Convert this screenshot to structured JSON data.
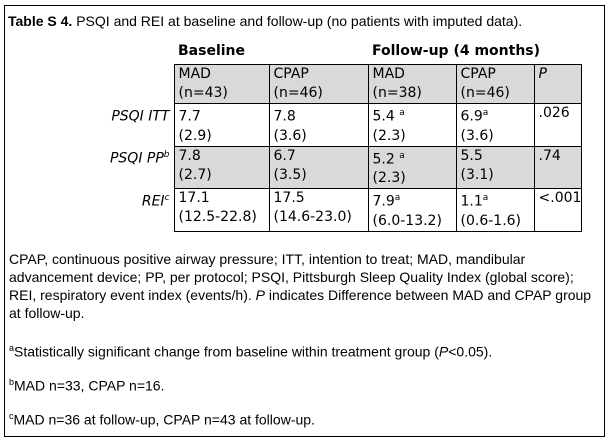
{
  "caption": {
    "label": "Table S 4.",
    "text": " PSQI and REI at baseline and follow-up (no patients with imputed data)."
  },
  "table": {
    "groups": {
      "baseline": "Baseline",
      "followup": "Follow-up (4 months)"
    },
    "subheaders": [
      {
        "line1": "MAD",
        "line2": "(n=43)"
      },
      {
        "line1": "CPAP",
        "line2": "(n=46)"
      },
      {
        "line1": "MAD",
        "line2": "(n=38)"
      },
      {
        "line1": "CPAP",
        "line2": "(n=46)"
      },
      {
        "line1": "P",
        "line2": ""
      }
    ],
    "rows": [
      {
        "label": "PSQI ITT",
        "label_sup": "",
        "cells": [
          {
            "v": "7.7",
            "sup": "",
            "sd": "(2.9)"
          },
          {
            "v": "7.8",
            "sup": "",
            "sd": "(3.6)"
          },
          {
            "v": "5.4",
            "sup": "a",
            "sd": "(2.3)"
          },
          {
            "v": "6.9",
            "sup": "a",
            "sd": "(3.6)"
          },
          {
            "v": ".026",
            "sup": "",
            "sd": ""
          }
        ]
      },
      {
        "label": "PSQI PP",
        "label_sup": "b",
        "cells": [
          {
            "v": "7.8",
            "sup": "",
            "sd": "(2.7)"
          },
          {
            "v": "6.7",
            "sup": "",
            "sd": "(3.5)"
          },
          {
            "v": "5.2",
            "sup": "a",
            "sd": "(2.3)"
          },
          {
            "v": "5.5",
            "sup": "",
            "sd": "(3.1)"
          },
          {
            "v": ".74",
            "sup": "",
            "sd": ""
          }
        ]
      },
      {
        "label": "REI",
        "label_sup": "c",
        "cells": [
          {
            "v": "17.1",
            "sup": "",
            "sd": "(12.5-22.8)"
          },
          {
            "v": "17.5",
            "sup": "",
            "sd": "(14.6-23.0)"
          },
          {
            "v": "7.9",
            "sup": "a",
            "sd": "(6.0-13.2)"
          },
          {
            "v": "1.1",
            "sup": "a",
            "sd": "(0.6-1.6)"
          },
          {
            "v": "<.001",
            "sup": "",
            "sd": ""
          }
        ]
      }
    ]
  },
  "notes": {
    "abbreviations": "CPAP, continuous positive airway pressure; ITT, intention to treat; MAD, mandibular advancement device; PP, per protocol; PSQI, Pittsburgh Sleep Quality Index (global score); REI, respiratory event index (events/h).",
    "abbrev_p": "P",
    "abbrev_tail": " indicates Difference between MAD and CPAP group at follow-up.",
    "a": {
      "mark": "a",
      "text_pre": "Statistically significant change from baseline within treatment group (",
      "p": "P",
      "text_post": "<0.05)."
    },
    "b": {
      "mark": "b",
      "text": "MAD n=33, CPAP n=16."
    },
    "c": {
      "mark": "c",
      "text": "MAD n=36 at follow-up, CPAP n=43 at follow-up."
    }
  }
}
